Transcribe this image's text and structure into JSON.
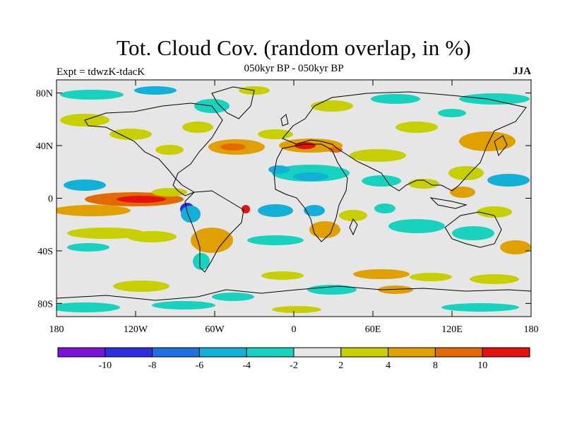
{
  "title": "Tot. Cloud Cov. (random overlap, in %)",
  "subtitle": "050kyr BP - 050kyr BP",
  "experiment": "Expt = tdwzK-tdacK",
  "season": "JJA",
  "map": {
    "projection": "cylindrical-equidistant",
    "lon_range": [
      -180,
      180
    ],
    "lat_range": [
      -90,
      90
    ],
    "x_ticks": [
      {
        "lon": -180,
        "label": "180"
      },
      {
        "lon": -120,
        "label": "120W"
      },
      {
        "lon": -60,
        "label": "60W"
      },
      {
        "lon": 0,
        "label": "0"
      },
      {
        "lon": 60,
        "label": "60E"
      },
      {
        "lon": 120,
        "label": "120E"
      },
      {
        "lon": 180,
        "label": "180"
      }
    ],
    "y_ticks": [
      {
        "lat": 80,
        "label": "80N"
      },
      {
        "lat": 40,
        "label": "40N"
      },
      {
        "lat": 0,
        "label": "0"
      },
      {
        "lat": -40,
        "label": "40S"
      },
      {
        "lat": -80,
        "label": "80S"
      }
    ],
    "background_color": "#e6e6e6"
  },
  "colorbar": {
    "colors": [
      "#7a12d8",
      "#2e2ee0",
      "#1e70e0",
      "#12b0d8",
      "#18d2c0",
      "#e6e6e6",
      "#c8cf00",
      "#e0a000",
      "#e26a00",
      "#e61010"
    ],
    "levels": [
      {
        "value": -10,
        "label": "-10"
      },
      {
        "value": -8,
        "label": "-8"
      },
      {
        "value": -6,
        "label": "-6"
      },
      {
        "value": -4,
        "label": "-4"
      },
      {
        "value": -2,
        "label": "-2"
      },
      {
        "value": 2,
        "label": "2"
      },
      {
        "value": 4,
        "label": "4"
      },
      {
        "value": 8,
        "label": "8"
      },
      {
        "value": 10,
        "label": "10"
      }
    ]
  }
}
